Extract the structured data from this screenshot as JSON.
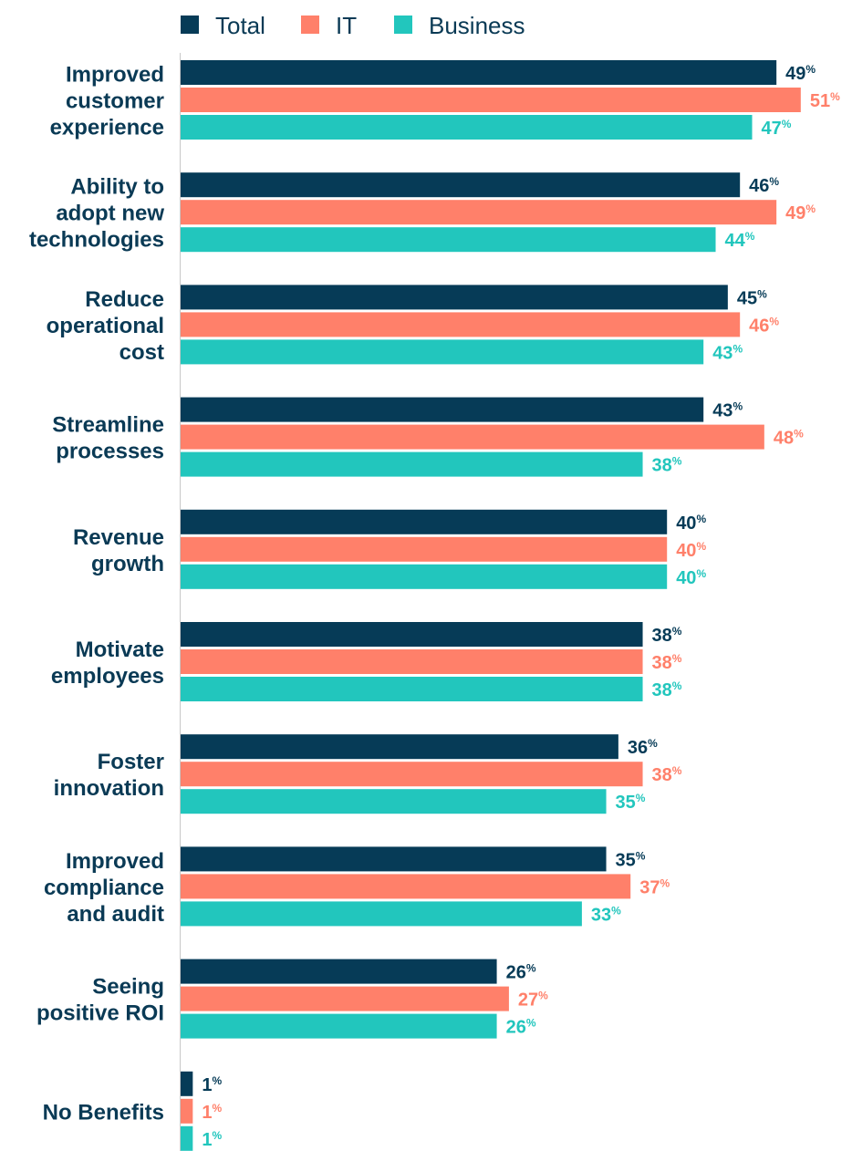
{
  "chart_data": {
    "type": "bar",
    "orientation": "horizontal",
    "unit": "%",
    "categories": [
      "Improved customer experience",
      "Ability to adopt new technologies",
      "Reduce operational cost",
      "Streamline processes",
      "Revenue growth",
      "Motivate employees",
      "Foster innovation",
      "Improved compliance and audit",
      "Seeing positive ROI",
      "No Benefits"
    ],
    "category_lines": [
      [
        "Improved",
        "customer",
        "experience"
      ],
      [
        "Ability to",
        "adopt new",
        "technologies"
      ],
      [
        "Reduce",
        "operational",
        "cost"
      ],
      [
        "Streamline",
        "processes"
      ],
      [
        "Revenue",
        "growth"
      ],
      [
        "Motivate",
        "employees"
      ],
      [
        "Foster",
        "innovation"
      ],
      [
        "Improved",
        "compliance",
        "and audit"
      ],
      [
        "Seeing",
        "positive ROI"
      ],
      [
        "No Benefits"
      ]
    ],
    "series": [
      {
        "name": "Total",
        "color": "#063b57",
        "label_color": "#063b57",
        "values": [
          49,
          46,
          45,
          43,
          40,
          38,
          36,
          35,
          26,
          1
        ]
      },
      {
        "name": "IT",
        "color": "#ff806a",
        "label_color": "#ff806a",
        "values": [
          51,
          49,
          46,
          48,
          40,
          38,
          38,
          37,
          27,
          1
        ]
      },
      {
        "name": "Business",
        "color": "#22c6bd",
        "label_color": "#22c6bd",
        "values": [
          47,
          44,
          43,
          38,
          40,
          38,
          35,
          33,
          26,
          1
        ]
      }
    ],
    "legend_position": "top",
    "grid": false,
    "xlim": [
      0,
      51
    ]
  }
}
